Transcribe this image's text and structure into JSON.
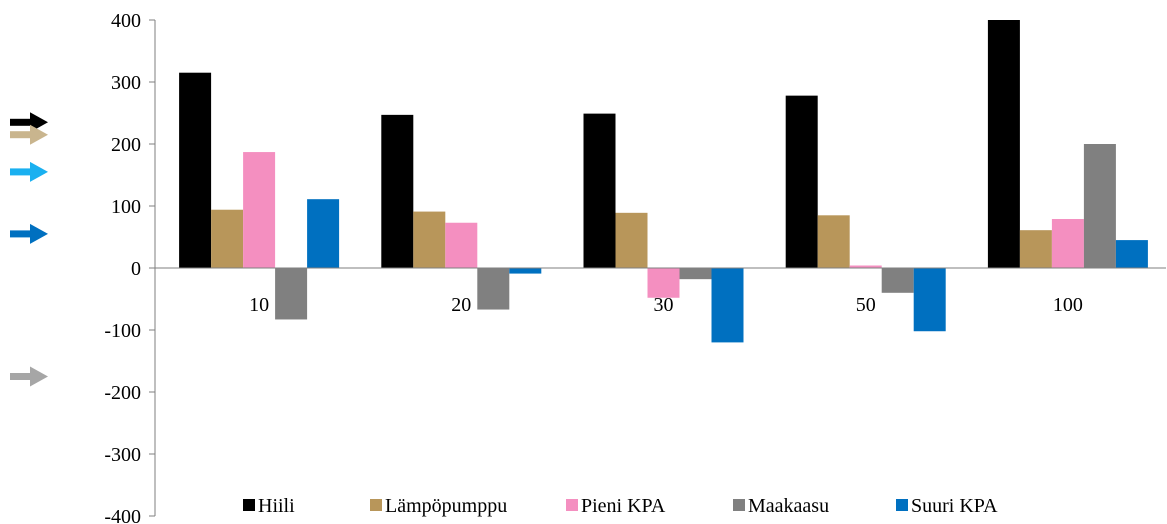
{
  "chart_data": {
    "type": "bar",
    "categories": [
      "10",
      "20",
      "30",
      "50",
      "100"
    ],
    "series": [
      {
        "name": "Hiili",
        "color": "#000000",
        "values": [
          315,
          247,
          249,
          278,
          400
        ]
      },
      {
        "name": "Lämpöpumppu",
        "color": "#B8965A",
        "values": [
          94,
          91,
          89,
          85,
          61
        ]
      },
      {
        "name": "Pieni KPA",
        "color": "#F48FC0",
        "values": [
          187,
          73,
          -48,
          4,
          79
        ]
      },
      {
        "name": "Maakaasu",
        "color": "#808080",
        "values": [
          -83,
          -67,
          -18,
          -40,
          200
        ]
      },
      {
        "name": "Suuri KPA",
        "color": "#0070C0",
        "values": [
          111,
          -9,
          -120,
          -102,
          45
        ]
      }
    ],
    "ylim": [
      -400,
      400
    ],
    "yticks": [
      "400",
      "300",
      "200",
      "100",
      "0",
      "-100",
      "-200",
      "-300",
      "-400"
    ],
    "ytick_values": [
      400,
      300,
      200,
      100,
      0,
      -100,
      -200,
      -300,
      -400
    ],
    "legend_position": "bottom",
    "grid": false,
    "title": "",
    "xlabel": "",
    "ylabel": ""
  },
  "side_markers": [
    {
      "name": "black-arrow",
      "color": "#000000",
      "value": 235
    },
    {
      "name": "tan-arrow",
      "color": "#C9B58E",
      "value": 215
    },
    {
      "name": "light-blue-arrow",
      "color": "#1AB0F0",
      "value": 155
    },
    {
      "name": "blue-arrow",
      "color": "#0070C0",
      "value": 55
    },
    {
      "name": "gray-arrow",
      "color": "#A6A6A6",
      "value": -175
    }
  ]
}
